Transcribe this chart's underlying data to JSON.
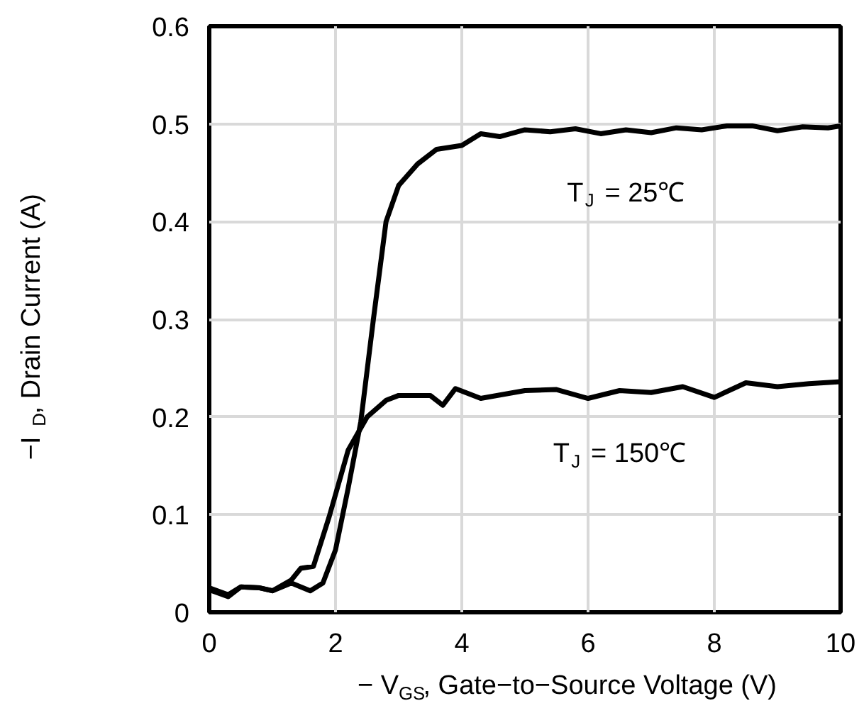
{
  "chart_data": {
    "type": "line",
    "xlabel": "− V$_{GS}$, Gate−to−Source Voltage (V)",
    "ylabel": "−I$_{D}$, Drain Current (A)",
    "xlim": [
      0,
      10
    ],
    "ylim": [
      0,
      0.6
    ],
    "xticks": [
      0,
      2,
      4,
      6,
      8,
      10
    ],
    "yticks": [
      0,
      0.1,
      0.2,
      0.3,
      0.4,
      0.5,
      0.6
    ],
    "grid": true,
    "legend": false,
    "marker": "none",
    "line_style": "solid",
    "series": [
      {
        "name": "T$_{J}$ = 25℃",
        "color": "#000000",
        "x": [
          0,
          0.3,
          0.5,
          0.8,
          1.0,
          1.3,
          1.6,
          1.8,
          2.0,
          2.2,
          2.4,
          2.6,
          2.8,
          3.0,
          3.3,
          3.6,
          4.0,
          4.3,
          4.6,
          5.0,
          5.4,
          5.8,
          6.2,
          6.6,
          7.0,
          7.4,
          7.8,
          8.2,
          8.6,
          9.0,
          9.4,
          9.8,
          10
        ],
        "values": [
          0.023,
          0.016,
          0.026,
          0.025,
          0.022,
          0.03,
          0.022,
          0.03,
          0.064,
          0.127,
          0.195,
          0.3,
          0.4,
          0.437,
          0.459,
          0.474,
          0.478,
          0.49,
          0.487,
          0.494,
          0.492,
          0.495,
          0.49,
          0.494,
          0.491,
          0.496,
          0.494,
          0.498,
          0.498,
          0.493,
          0.497,
          0.496,
          0.498
        ]
      },
      {
        "name": "T$_{J}$ = 150℃",
        "color": "#000000",
        "x": [
          0,
          0.3,
          0.5,
          0.8,
          1.0,
          1.3,
          1.45,
          1.65,
          1.9,
          2.2,
          2.5,
          2.8,
          3.0,
          3.5,
          3.7,
          3.9,
          4.3,
          5.0,
          5.5,
          6.0,
          6.5,
          7.0,
          7.5,
          8.0,
          8.5,
          9.0,
          9.5,
          10
        ],
        "values": [
          0.025,
          0.018,
          0.026,
          0.025,
          0.022,
          0.033,
          0.045,
          0.047,
          0.098,
          0.166,
          0.2,
          0.217,
          0.222,
          0.222,
          0.212,
          0.229,
          0.219,
          0.227,
          0.228,
          0.219,
          0.227,
          0.225,
          0.231,
          0.22,
          0.235,
          0.231,
          0.234,
          0.236
        ]
      }
    ]
  }
}
